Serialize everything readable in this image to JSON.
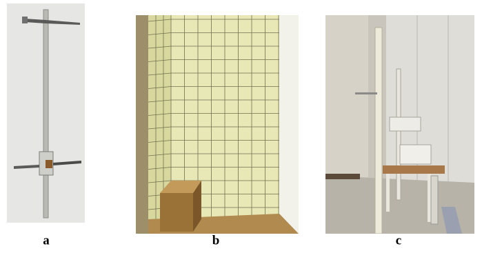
{
  "figure": {
    "panels": [
      {
        "label": "a"
      },
      {
        "label": "b"
      },
      {
        "label": "c"
      }
    ]
  }
}
